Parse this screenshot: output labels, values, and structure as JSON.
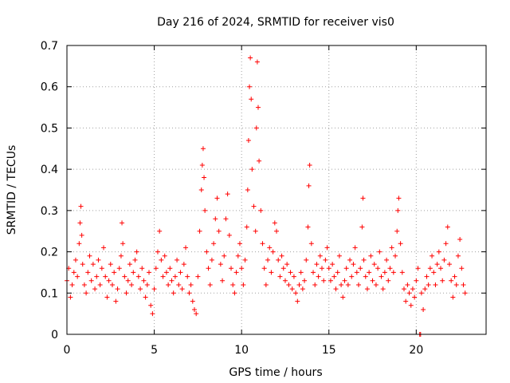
{
  "chart_data": {
    "type": "scatter",
    "title": "Day 216 of 2024, SRMTID for receiver vis0",
    "xlabel": "GPS time / hours",
    "ylabel": "SRMTID / TECUs",
    "xlim": [
      0,
      24
    ],
    "ylim": [
      0,
      0.7
    ],
    "grid": true,
    "xticks": [
      0,
      5,
      10,
      15,
      20
    ],
    "yticks": [
      0,
      0.1,
      0.2,
      0.3,
      0.4,
      0.5,
      0.6,
      0.7
    ],
    "ytick_labels": [
      "0",
      "0.1",
      "0.2",
      "0.3",
      "0.4",
      "0.5",
      "0.6",
      "0.7"
    ],
    "marker": "+",
    "color": "#ff0000",
    "series": [
      {
        "name": "vis0",
        "points": [
          [
            0.0,
            0.13
          ],
          [
            0.1,
            0.16
          ],
          [
            0.2,
            0.09
          ],
          [
            0.3,
            0.12
          ],
          [
            0.4,
            0.15
          ],
          [
            0.5,
            0.18
          ],
          [
            0.6,
            0.14
          ],
          [
            0.7,
            0.22
          ],
          [
            0.75,
            0.27
          ],
          [
            0.8,
            0.31
          ],
          [
            0.85,
            0.24
          ],
          [
            0.9,
            0.17
          ],
          [
            1.0,
            0.12
          ],
          [
            1.1,
            0.1
          ],
          [
            1.2,
            0.15
          ],
          [
            1.3,
            0.19
          ],
          [
            1.4,
            0.13
          ],
          [
            1.5,
            0.17
          ],
          [
            1.6,
            0.11
          ],
          [
            1.7,
            0.14
          ],
          [
            1.8,
            0.18
          ],
          [
            1.9,
            0.12
          ],
          [
            2.0,
            0.16
          ],
          [
            2.1,
            0.21
          ],
          [
            2.2,
            0.14
          ],
          [
            2.3,
            0.09
          ],
          [
            2.4,
            0.13
          ],
          [
            2.5,
            0.17
          ],
          [
            2.6,
            0.12
          ],
          [
            2.7,
            0.15
          ],
          [
            2.8,
            0.08
          ],
          [
            2.9,
            0.11
          ],
          [
            3.0,
            0.16
          ],
          [
            3.1,
            0.19
          ],
          [
            3.15,
            0.27
          ],
          [
            3.2,
            0.22
          ],
          [
            3.3,
            0.14
          ],
          [
            3.4,
            0.1
          ],
          [
            3.5,
            0.13
          ],
          [
            3.6,
            0.17
          ],
          [
            3.7,
            0.12
          ],
          [
            3.8,
            0.15
          ],
          [
            3.9,
            0.18
          ],
          [
            4.0,
            0.2
          ],
          [
            4.1,
            0.14
          ],
          [
            4.2,
            0.11
          ],
          [
            4.3,
            0.16
          ],
          [
            4.4,
            0.13
          ],
          [
            4.5,
            0.09
          ],
          [
            4.6,
            0.12
          ],
          [
            4.7,
            0.15
          ],
          [
            4.8,
            0.07
          ],
          [
            4.9,
            0.05
          ],
          [
            5.0,
            0.11
          ],
          [
            5.1,
            0.16
          ],
          [
            5.2,
            0.2
          ],
          [
            5.3,
            0.25
          ],
          [
            5.4,
            0.18
          ],
          [
            5.5,
            0.14
          ],
          [
            5.6,
            0.19
          ],
          [
            5.7,
            0.15
          ],
          [
            5.8,
            0.12
          ],
          [
            5.9,
            0.16
          ],
          [
            6.0,
            0.13
          ],
          [
            6.1,
            0.1
          ],
          [
            6.2,
            0.14
          ],
          [
            6.3,
            0.18
          ],
          [
            6.4,
            0.12
          ],
          [
            6.5,
            0.15
          ],
          [
            6.6,
            0.11
          ],
          [
            6.7,
            0.17
          ],
          [
            6.8,
            0.21
          ],
          [
            6.9,
            0.14
          ],
          [
            7.0,
            0.1
          ],
          [
            7.1,
            0.12
          ],
          [
            7.2,
            0.08
          ],
          [
            7.3,
            0.06
          ],
          [
            7.4,
            0.05
          ],
          [
            7.5,
            0.14
          ],
          [
            7.6,
            0.25
          ],
          [
            7.7,
            0.35
          ],
          [
            7.75,
            0.41
          ],
          [
            7.8,
            0.45
          ],
          [
            7.85,
            0.38
          ],
          [
            7.9,
            0.3
          ],
          [
            8.0,
            0.2
          ],
          [
            8.1,
            0.16
          ],
          [
            8.2,
            0.12
          ],
          [
            8.3,
            0.18
          ],
          [
            8.4,
            0.22
          ],
          [
            8.5,
            0.28
          ],
          [
            8.6,
            0.33
          ],
          [
            8.7,
            0.25
          ],
          [
            8.8,
            0.17
          ],
          [
            8.9,
            0.13
          ],
          [
            9.0,
            0.19
          ],
          [
            9.1,
            0.28
          ],
          [
            9.2,
            0.34
          ],
          [
            9.3,
            0.24
          ],
          [
            9.4,
            0.16
          ],
          [
            9.5,
            0.12
          ],
          [
            9.6,
            0.1
          ],
          [
            9.7,
            0.15
          ],
          [
            9.8,
            0.19
          ],
          [
            9.9,
            0.22
          ],
          [
            10.0,
            0.16
          ],
          [
            10.1,
            0.12
          ],
          [
            10.2,
            0.18
          ],
          [
            10.3,
            0.26
          ],
          [
            10.35,
            0.35
          ],
          [
            10.4,
            0.47
          ],
          [
            10.45,
            0.6
          ],
          [
            10.5,
            0.67
          ],
          [
            10.55,
            0.57
          ],
          [
            10.6,
            0.4
          ],
          [
            10.7,
            0.31
          ],
          [
            10.8,
            0.25
          ],
          [
            10.85,
            0.5
          ],
          [
            10.9,
            0.66
          ],
          [
            10.95,
            0.55
          ],
          [
            11.0,
            0.42
          ],
          [
            11.1,
            0.3
          ],
          [
            11.2,
            0.22
          ],
          [
            11.3,
            0.16
          ],
          [
            11.4,
            0.12
          ],
          [
            11.5,
            0.18
          ],
          [
            11.6,
            0.21
          ],
          [
            11.7,
            0.15
          ],
          [
            11.8,
            0.2
          ],
          [
            11.9,
            0.27
          ],
          [
            12.0,
            0.25
          ],
          [
            12.1,
            0.18
          ],
          [
            12.2,
            0.14
          ],
          [
            12.3,
            0.19
          ],
          [
            12.4,
            0.16
          ],
          [
            12.5,
            0.13
          ],
          [
            12.6,
            0.17
          ],
          [
            12.7,
            0.12
          ],
          [
            12.8,
            0.15
          ],
          [
            12.9,
            0.11
          ],
          [
            13.0,
            0.14
          ],
          [
            13.1,
            0.1
          ],
          [
            13.2,
            0.08
          ],
          [
            13.3,
            0.12
          ],
          [
            13.4,
            0.15
          ],
          [
            13.5,
            0.11
          ],
          [
            13.6,
            0.13
          ],
          [
            13.7,
            0.18
          ],
          [
            13.8,
            0.26
          ],
          [
            13.85,
            0.36
          ],
          [
            13.9,
            0.41
          ],
          [
            14.0,
            0.22
          ],
          [
            14.1,
            0.15
          ],
          [
            14.2,
            0.12
          ],
          [
            14.3,
            0.17
          ],
          [
            14.4,
            0.14
          ],
          [
            14.5,
            0.19
          ],
          [
            14.6,
            0.16
          ],
          [
            14.7,
            0.13
          ],
          [
            14.8,
            0.18
          ],
          [
            14.9,
            0.21
          ],
          [
            15.0,
            0.16
          ],
          [
            15.1,
            0.13
          ],
          [
            15.2,
            0.17
          ],
          [
            15.3,
            0.14
          ],
          [
            15.4,
            0.11
          ],
          [
            15.5,
            0.15
          ],
          [
            15.6,
            0.19
          ],
          [
            15.7,
            0.12
          ],
          [
            15.8,
            0.09
          ],
          [
            15.9,
            0.13
          ],
          [
            16.0,
            0.16
          ],
          [
            16.1,
            0.12
          ],
          [
            16.2,
            0.18
          ],
          [
            16.3,
            0.14
          ],
          [
            16.4,
            0.17
          ],
          [
            16.5,
            0.21
          ],
          [
            16.6,
            0.15
          ],
          [
            16.7,
            0.12
          ],
          [
            16.8,
            0.16
          ],
          [
            16.9,
            0.26
          ],
          [
            16.95,
            0.33
          ],
          [
            17.0,
            0.18
          ],
          [
            17.1,
            0.14
          ],
          [
            17.2,
            0.11
          ],
          [
            17.3,
            0.15
          ],
          [
            17.4,
            0.19
          ],
          [
            17.5,
            0.13
          ],
          [
            17.6,
            0.17
          ],
          [
            17.7,
            0.12
          ],
          [
            17.8,
            0.16
          ],
          [
            17.9,
            0.2
          ],
          [
            18.0,
            0.14
          ],
          [
            18.1,
            0.11
          ],
          [
            18.2,
            0.15
          ],
          [
            18.3,
            0.18
          ],
          [
            18.4,
            0.13
          ],
          [
            18.5,
            0.16
          ],
          [
            18.6,
            0.21
          ],
          [
            18.7,
            0.15
          ],
          [
            18.8,
            0.19
          ],
          [
            18.9,
            0.25
          ],
          [
            18.95,
            0.3
          ],
          [
            19.0,
            0.33
          ],
          [
            19.1,
            0.22
          ],
          [
            19.2,
            0.15
          ],
          [
            19.3,
            0.11
          ],
          [
            19.4,
            0.08
          ],
          [
            19.5,
            0.12
          ],
          [
            19.6,
            0.1
          ],
          [
            19.7,
            0.07
          ],
          [
            19.8,
            0.11
          ],
          [
            19.9,
            0.09
          ],
          [
            20.0,
            0.13
          ],
          [
            20.1,
            0.16
          ],
          [
            20.2,
            0.0
          ],
          [
            20.25,
            0.0
          ],
          [
            20.3,
            0.1
          ],
          [
            20.4,
            0.06
          ],
          [
            20.5,
            0.11
          ],
          [
            20.6,
            0.14
          ],
          [
            20.7,
            0.12
          ],
          [
            20.8,
            0.16
          ],
          [
            20.9,
            0.19
          ],
          [
            21.0,
            0.15
          ],
          [
            21.1,
            0.12
          ],
          [
            21.2,
            0.17
          ],
          [
            21.3,
            0.2
          ],
          [
            21.4,
            0.16
          ],
          [
            21.5,
            0.13
          ],
          [
            21.6,
            0.18
          ],
          [
            21.7,
            0.22
          ],
          [
            21.8,
            0.26
          ],
          [
            21.9,
            0.17
          ],
          [
            22.0,
            0.13
          ],
          [
            22.1,
            0.09
          ],
          [
            22.2,
            0.14
          ],
          [
            22.3,
            0.12
          ],
          [
            22.4,
            0.19
          ],
          [
            22.5,
            0.23
          ],
          [
            22.6,
            0.16
          ],
          [
            22.7,
            0.12
          ],
          [
            22.8,
            0.1
          ]
        ]
      }
    ]
  }
}
